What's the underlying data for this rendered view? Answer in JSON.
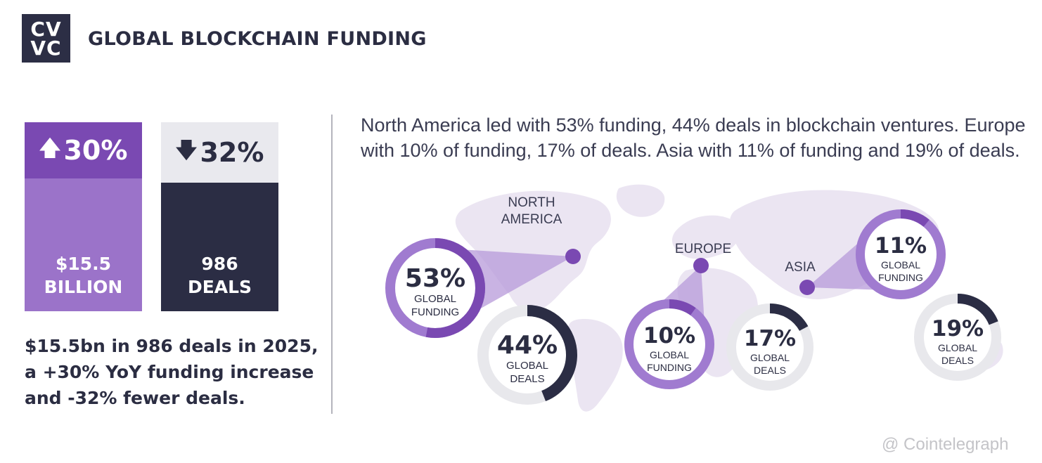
{
  "logo": {
    "line1": "CV",
    "line2": "VC"
  },
  "title": "GLOBAL BLOCKCHAIN FUNDING",
  "cards": {
    "funding": {
      "change": "30%",
      "arrow": "up-arrow-icon",
      "value": "$15.5",
      "unit": "BILLION"
    },
    "deals": {
      "change": "32%",
      "arrow": "down-arrow-icon",
      "value": "986",
      "unit": "DEALS"
    }
  },
  "summary": [
    "$15.5bn in 986 deals in 2025,",
    "a +30% YoY funding increase",
    "and -32% fewer deals."
  ],
  "description": "North America led with 53% funding, 44% deals in blockchain ventures. Europe with 10% of funding, 17% of deals. Asia with 11% of funding and 19% of deals.",
  "watermark": "@ Cointelegraph",
  "colors": {
    "purple": "#7a49b2",
    "purple_light": "#9b73c9",
    "navy": "#2b2d44",
    "track": "#e8e8ec",
    "map": "#ebe5f2"
  },
  "chart_data": {
    "type": "pie",
    "regions": [
      {
        "name": "NORTH\nAMERICA",
        "funding": 53,
        "deals": 44
      },
      {
        "name": "EUROPE",
        "funding": 10,
        "deals": 17
      },
      {
        "name": "ASIA",
        "funding": 11,
        "deals": 19
      }
    ],
    "ring_labels": {
      "funding": "GLOBAL\nFUNDING",
      "deals": "GLOBAL\nDEALS"
    },
    "unit": "%"
  }
}
